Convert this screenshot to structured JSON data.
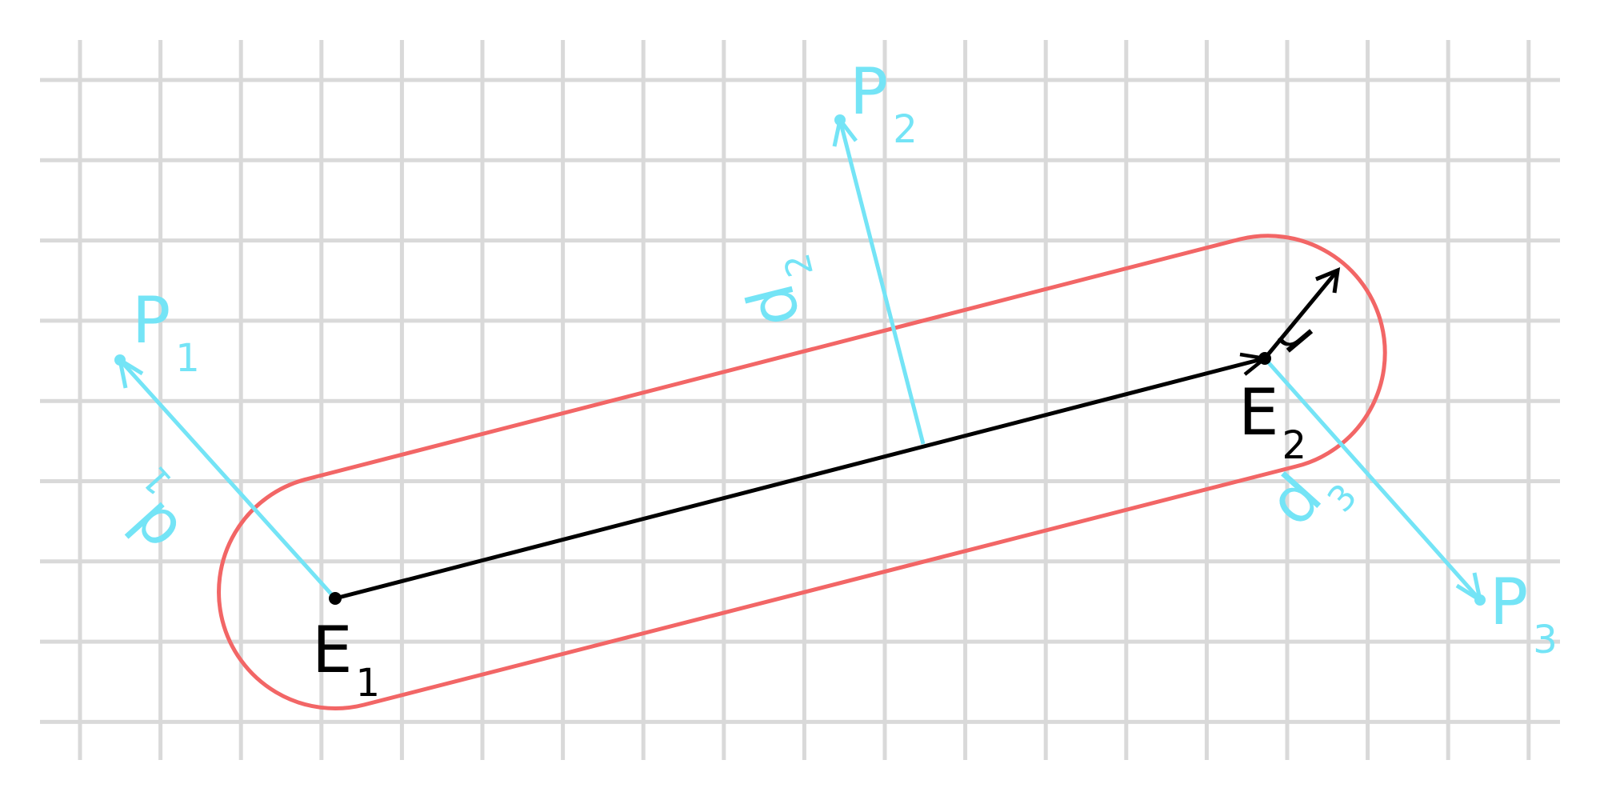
{
  "labels": {
    "e1": "E",
    "e1_sub": "1",
    "e2": "E",
    "e2_sub": "2",
    "p1": "P",
    "p1_sub": "1",
    "p2": "P",
    "p2_sub": "2",
    "p3": "P",
    "p3_sub": "3",
    "d1": "d",
    "d1_sub": "1",
    "d2": "d",
    "d2_sub": "2",
    "d3": "d",
    "d3_sub": "3",
    "r": "r"
  },
  "colors": {
    "grid": "#d9d9d9",
    "capsule": "#f26666",
    "segment": "#000000",
    "distance": "#74e4f6",
    "background": "#ffffff"
  }
}
